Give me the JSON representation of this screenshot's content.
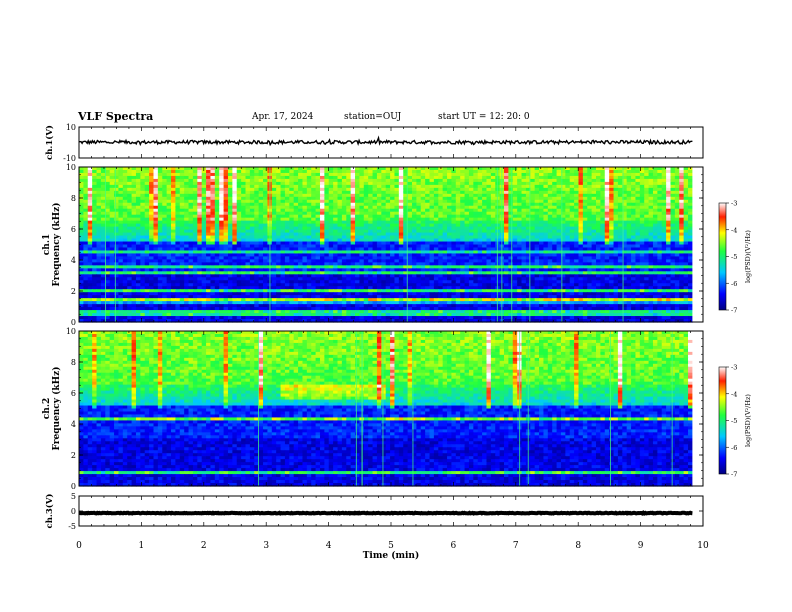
{
  "header": {
    "title": "VLF Spectra",
    "date": "Apr. 17, 2024",
    "station": "station=OUJ",
    "start_ut": "start  UT =   12: 20: 0"
  },
  "chart_data": [
    {
      "type": "line",
      "name": "ch1-waveform",
      "ylabel": "ch.1(V)",
      "ylim": [
        -10,
        10
      ],
      "yticks": [
        "10",
        "-10"
      ],
      "xlim": [
        0,
        10
      ],
      "x_end_data": 9.83,
      "trace_level": 0.2,
      "trace_noise": 1.1
    },
    {
      "type": "heatmap",
      "name": "ch1-spectrogram",
      "ylabel": "Frequency (kHz)",
      "channel_label": "ch.1",
      "ylim": [
        0,
        10
      ],
      "yticks": [
        "0",
        "2",
        "4",
        "6",
        "8",
        "10"
      ],
      "xlim": [
        0,
        10
      ],
      "x_end_data": 9.83,
      "colorbar": {
        "label": "log(PSD)(V²/Hz)",
        "range": [
          -7,
          -3
        ],
        "ticks": [
          "-3",
          "-4",
          "-5",
          "-6",
          "-7"
        ]
      }
    },
    {
      "type": "heatmap",
      "name": "ch2-spectrogram",
      "ylabel": "Frequency (kHz)",
      "channel_label": "ch.2",
      "ylim": [
        0,
        10
      ],
      "yticks": [
        "0",
        "2",
        "4",
        "6",
        "8",
        "10"
      ],
      "xlim": [
        0,
        10
      ],
      "x_end_data": 9.83,
      "colorbar": {
        "label": "log(PSD)(V²/Hz)",
        "range": [
          -7,
          -3
        ],
        "ticks": [
          "-3",
          "-4",
          "-5",
          "-6",
          "-7"
        ]
      }
    },
    {
      "type": "line",
      "name": "ch3-waveform",
      "ylabel": "ch.3(V)",
      "ylim": [
        -5,
        5
      ],
      "yticks": [
        "5",
        "0",
        "-5"
      ],
      "xlim": [
        0,
        10
      ],
      "x_end_data": 9.83,
      "trace_level": -0.7,
      "trace_noise": 0.12
    }
  ],
  "xaxis": {
    "label": "Time (min)",
    "ticks": [
      "0",
      "1",
      "2",
      "3",
      "4",
      "5",
      "6",
      "7",
      "8",
      "9",
      "10"
    ]
  }
}
